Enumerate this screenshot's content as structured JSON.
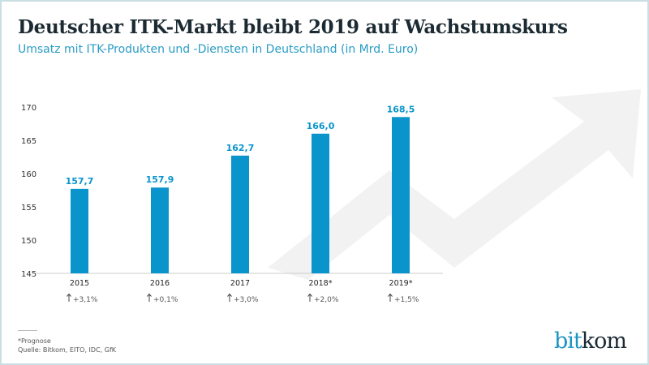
{
  "colors": {
    "bar": "#0a94cc",
    "label": "#0a94cc",
    "axis": "#cccccc",
    "text": "#333333",
    "arrow": "#f2f2f2"
  },
  "footer": {
    "note": "*Prognose",
    "source": "Quelle: Bitkom, EITO, IDC, GfK"
  },
  "logo": {
    "text": "bitkom"
  },
  "chart_data": {
    "type": "bar",
    "title": "Deutscher ITK-Markt bleibt 2019 auf Wachstumskurs",
    "subtitle": "Umsatz mit ITK-Produkten und -Diensten in Deutschland (in Mrd. Euro)",
    "categories": [
      "2015",
      "2016",
      "2017",
      "2018*",
      "2019*"
    ],
    "values": [
      157.7,
      157.9,
      162.7,
      166.0,
      168.5
    ],
    "value_labels": [
      "157,7",
      "157,9",
      "162,7",
      "166,0",
      "168,5"
    ],
    "growth": [
      "+3,1%",
      "+0,1%",
      "+3,0%",
      "+2,0%",
      "+1,5%"
    ],
    "growth_icon": "arrow-up-icon",
    "yticks": [
      "145",
      "150",
      "155",
      "160",
      "165",
      "170"
    ],
    "ylim": [
      145,
      170
    ],
    "grid": false
  }
}
